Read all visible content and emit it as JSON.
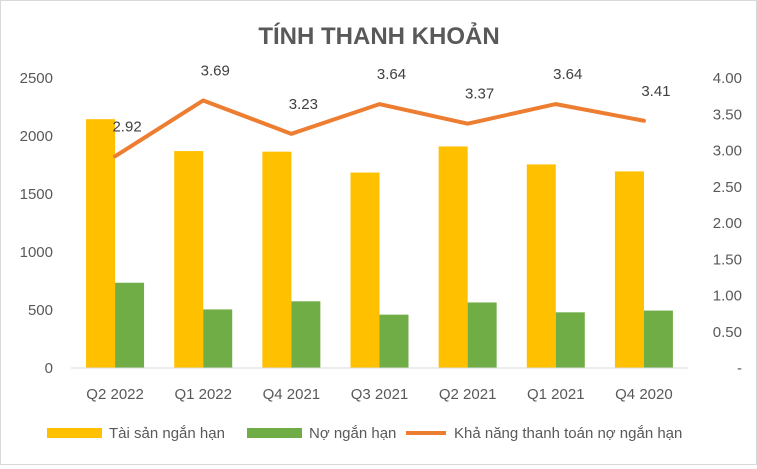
{
  "chart_data": {
    "type": "bar",
    "title": "TÍNH THANH KHOẢN",
    "categories": [
      "Q2 2022",
      "Q1 2022",
      "Q4 2021",
      "Q3 2021",
      "Q2 2021",
      "Q1 2021",
      "Q4 2020"
    ],
    "series": [
      {
        "name": "Tài sản ngắn hạn",
        "type": "bar",
        "axis": "left",
        "color": "#FFC000",
        "values": [
          2145,
          1870,
          1865,
          1685,
          1910,
          1755,
          1695
        ]
      },
      {
        "name": "Nợ ngắn hạn",
        "type": "bar",
        "axis": "left",
        "color": "#70AD47",
        "values": [
          735,
          505,
          575,
          460,
          565,
          480,
          495
        ]
      },
      {
        "name": "Khả năng thanh toán nợ ngắn hạn",
        "type": "line",
        "axis": "right",
        "color": "#ED7D31",
        "values": [
          2.92,
          3.69,
          3.23,
          3.64,
          3.37,
          3.64,
          3.41
        ],
        "labels": [
          "2.92",
          "3.69",
          "3.23",
          "3.64",
          "3.37",
          "3.64",
          "3.41"
        ]
      }
    ],
    "y_left": {
      "min": 0,
      "max": 2500,
      "ticks": [
        "0",
        "500",
        "1000",
        "1500",
        "2000",
        "2500"
      ]
    },
    "y_right": {
      "min": 0,
      "max": 4,
      "ticks": [
        "-",
        "0.50",
        "1.00",
        "1.50",
        "2.00",
        "2.50",
        "3.00",
        "3.50",
        "4.00"
      ]
    },
    "grid": false,
    "legend_position": "bottom"
  }
}
